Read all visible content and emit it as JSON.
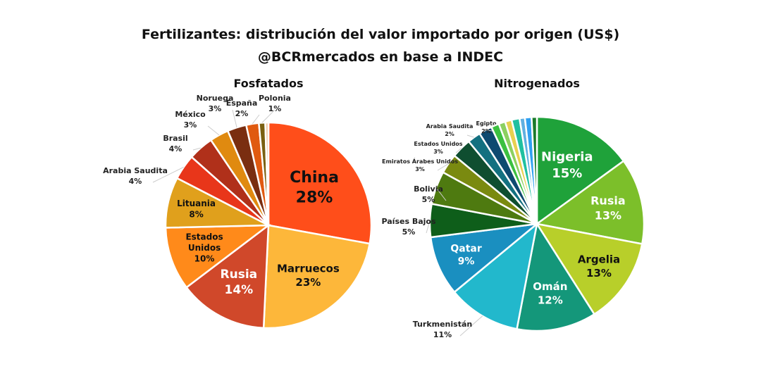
{
  "title": "Fertilizantes: distribución del valor importado por origen (US$)",
  "subtitle": "@BCRmercados en base a INDEC",
  "chart_data": [
    {
      "type": "pie",
      "title": "Fosfatados",
      "unit": "%",
      "slices": [
        {
          "label": "China",
          "value": 28,
          "color": "#FF4E1A",
          "text_color": "#111111"
        },
        {
          "label": "Marruecos",
          "value": 23,
          "color": "#FDB73A",
          "text_color": "#111111"
        },
        {
          "label": "Rusia",
          "value": 14,
          "color": "#D0482A",
          "text_color": "#ffffff"
        },
        {
          "label": "Estados Unidos",
          "value": 10,
          "color": "#FF8A1A",
          "text_color": "#111111"
        },
        {
          "label": "Lituania",
          "value": 8,
          "color": "#E0A01C",
          "text_color": "#111111"
        },
        {
          "label": "Arabia Saudita",
          "value": 4,
          "color": "#E8361A"
        },
        {
          "label": "Brasil",
          "value": 4,
          "color": "#B0301A"
        },
        {
          "label": "México",
          "value": 3,
          "color": "#E08A10"
        },
        {
          "label": "Noruega",
          "value": 3,
          "color": "#7A2E10"
        },
        {
          "label": "España",
          "value": 2,
          "color": "#E05A10"
        },
        {
          "label": "Polonia",
          "value": 1,
          "color": "#7A6010"
        },
        {
          "label": "",
          "value": 0.5,
          "color": "#F0C8A0"
        }
      ]
    },
    {
      "type": "pie",
      "title": "Nitrogenados",
      "unit": "%",
      "slices": [
        {
          "label": "Nigeria",
          "value": 15,
          "color": "#1FA23A",
          "text_color": "#ffffff"
        },
        {
          "label": "Rusia",
          "value": 13,
          "color": "#7CBF2A",
          "text_color": "#ffffff"
        },
        {
          "label": "Argelia",
          "value": 13,
          "color": "#B8CF2A",
          "text_color": "#111111"
        },
        {
          "label": "Omán",
          "value": 12,
          "color": "#14977A",
          "text_color": "#ffffff"
        },
        {
          "label": "Turkmenistán",
          "value": 11,
          "color": "#22B8CC"
        },
        {
          "label": "Qatar",
          "value": 9,
          "color": "#1A8FC0",
          "text_color": "#ffffff"
        },
        {
          "label": "Países Bajos",
          "value": 5,
          "color": "#0E5E1A"
        },
        {
          "label": "Bolivia",
          "value": 5,
          "color": "#4E7A10"
        },
        {
          "label": "Emiratos Árabes Unidos",
          "value": 3,
          "color": "#7A8A10"
        },
        {
          "label": "Estados Unidos",
          "value": 3,
          "color": "#0F4E30"
        },
        {
          "label": "Arabia Saudita",
          "value": 2,
          "color": "#137080"
        },
        {
          "label": "Egipto",
          "value": 2,
          "color": "#0E4A70"
        },
        {
          "label": "",
          "value": 1.2,
          "color": "#3CC040"
        },
        {
          "label": "",
          "value": 1,
          "color": "#8CD060"
        },
        {
          "label": "",
          "value": 1,
          "color": "#E8D050"
        },
        {
          "label": "",
          "value": 1.2,
          "color": "#20C0A0"
        },
        {
          "label": "",
          "value": 0.8,
          "color": "#60B0E0"
        },
        {
          "label": "",
          "value": 1,
          "color": "#30A0F0"
        },
        {
          "label": "",
          "value": 0.8,
          "color": "#1A7A2A"
        }
      ]
    }
  ]
}
